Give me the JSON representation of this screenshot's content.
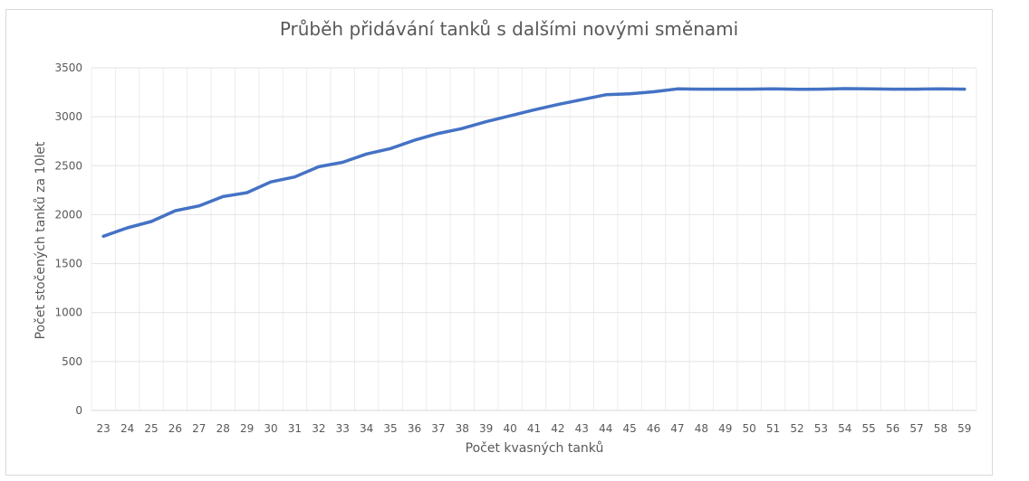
{
  "chart_data": {
    "type": "line",
    "title": "Průběh přidávání tanků s dalšími novými směnami",
    "xlabel": "Počet kvasných tanků",
    "ylabel": "Počet stočených tanků za 10let",
    "ylim": [
      0,
      3500
    ],
    "yticks": [
      "0",
      "500",
      "1000",
      "1500",
      "2000",
      "2500",
      "3000",
      "3500"
    ],
    "categories": [
      "23",
      "24",
      "25",
      "26",
      "27",
      "28",
      "29",
      "30",
      "31",
      "32",
      "33",
      "34",
      "35",
      "36",
      "37",
      "38",
      "39",
      "40",
      "41",
      "42",
      "43",
      "44",
      "45",
      "46",
      "47",
      "48",
      "49",
      "50",
      "51",
      "52",
      "53",
      "54",
      "55",
      "56",
      "57",
      "58",
      "59"
    ],
    "series": [
      {
        "color": "#4472c4",
        "values": [
          1780,
          1865,
          1930,
          2040,
          2090,
          2185,
          2225,
          2335,
          2385,
          2490,
          2535,
          2620,
          2675,
          2760,
          2830,
          2880,
          2950,
          3010,
          3070,
          3125,
          3175,
          3225,
          3235,
          3255,
          3285,
          3282,
          3282,
          3282,
          3285,
          3280,
          3282,
          3288,
          3285,
          3282,
          3282,
          3285,
          3282
        ]
      }
    ],
    "grid": true,
    "legend": "none"
  }
}
